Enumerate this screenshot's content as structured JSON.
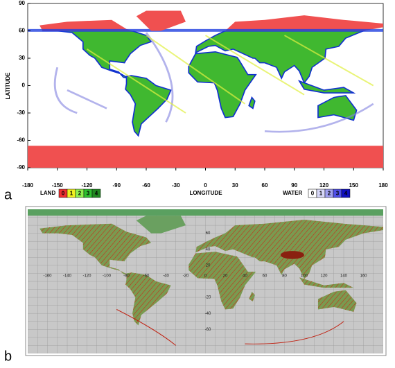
{
  "panel_a": {
    "label": "a",
    "y_axis_title": "LATITUDE",
    "x_axis_title": "LONGITUDE",
    "lat_ticks": [
      90,
      60,
      30,
      0,
      -30,
      -60,
      -90
    ],
    "lon_ticks": [
      -180,
      -150,
      -120,
      -90,
      -60,
      -30,
      0,
      30,
      60,
      90,
      120,
      150,
      180
    ],
    "legend": {
      "land_label": "LAND",
      "land_classes": [
        "0",
        "1",
        "2",
        "3",
        "4"
      ],
      "land_colors": [
        "#f03030",
        "#f0f020",
        "#90f050",
        "#30c030",
        "#208820"
      ],
      "water_label": "WATER",
      "water_classes": [
        "0",
        "1",
        "2",
        "3",
        "4"
      ],
      "water_colors": [
        "#ffffff",
        "#d8d8f8",
        "#a0a0f0",
        "#5050e8",
        "#1010c0"
      ]
    }
  },
  "panel_b": {
    "label": "b",
    "lon_grid_labels": [
      -160,
      -140,
      -120,
      -100,
      -80,
      -60,
      -40,
      -20,
      0,
      20,
      40,
      60,
      80,
      100,
      120,
      140,
      160
    ],
    "lat_grid_labels": [
      60,
      40,
      20,
      -20,
      -40,
      -60
    ]
  }
}
